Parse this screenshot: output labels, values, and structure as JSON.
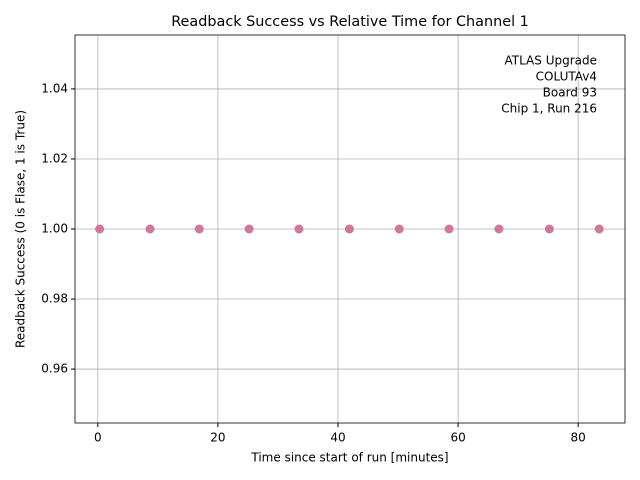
{
  "chart_data": {
    "type": "scatter",
    "title": "Readback Success vs Relative Time for Channel 1",
    "x_label": "Time since start of run [minutes]",
    "y_label": "Readback Success (0 is Flase, 1 is True)",
    "annotation": [
      "ATLAS Upgrade",
      "COLUTAv4",
      "Board 93",
      "Chip 1, Run 216"
    ],
    "x": [
      0.3,
      8.7,
      16.9,
      25.2,
      33.5,
      41.9,
      50.2,
      58.5,
      66.8,
      75.2,
      83.5
    ],
    "values": [
      1,
      1,
      1,
      1,
      1,
      1,
      1,
      1,
      1,
      1,
      1
    ],
    "color": "#d0779b",
    "xlim": [
      -3.8,
      87.8
    ],
    "xticks": [
      0,
      20,
      40,
      60,
      80
    ],
    "ylim": [
      0.9446,
      1.0554
    ],
    "yticks": [
      0.96,
      0.98,
      {
        "value": 1,
        "label": "1.00"
      },
      1.02,
      1.04
    ],
    "grid": true
  }
}
